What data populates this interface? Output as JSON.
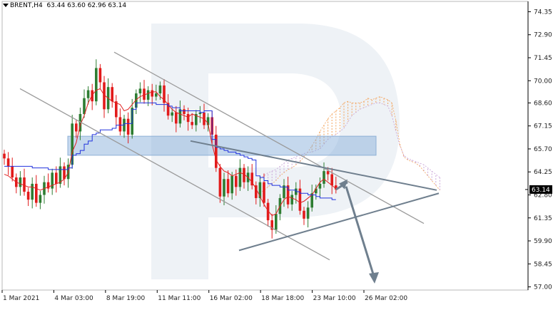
{
  "header": {
    "symbol": "BRENT,H4",
    "ohlc": "63.44 63.60 62.96 63.14"
  },
  "colors": {
    "bull": "#2e7d32",
    "bear": "#e21b1b",
    "tenkan": "#e02020",
    "kijun": "#2233dd",
    "cloud_bull": "#f3a35a",
    "cloud_bear": "#c9a4d8",
    "resistance_zone": "#7fa9d8",
    "trend_line": "#9a9a9a",
    "forecast_arrow": "#6f7f8e",
    "price_tag_bg": "#000000"
  },
  "chart_data": {
    "type": "candlestick",
    "title": "BRENT,H4",
    "ohlc_readout": "63.44 63.60 62.96 63.14",
    "y_axis": {
      "ylim": [
        56.8,
        75.0
      ],
      "ticks": [
        "74.35",
        "72.90",
        "71.45",
        "70.00",
        "68.60",
        "67.15",
        "65.70",
        "64.25",
        "62.80",
        "61.35",
        "59.90",
        "58.45",
        "57.00"
      ]
    },
    "x_axis": {
      "ticks": [
        "1 Mar 2021",
        "4 Mar 03:00",
        "8 Mar 19:00",
        "11 Mar 11:00",
        "16 Mar 02:00",
        "18 Mar 18:00",
        "23 Mar 10:00",
        "26 Mar 02:00"
      ]
    },
    "last_price": "63.14",
    "closes": [
      65.1,
      64.6,
      63.9,
      63.3,
      63.9,
      63.0,
      62.5,
      63.5,
      62.3,
      62.8,
      63.6,
      63.2,
      64.2,
      63.5,
      64.6,
      63.8,
      64.7,
      67.3,
      66.8,
      67.9,
      68.9,
      69.4,
      68.7,
      70.8,
      69.9,
      68.2,
      69.6,
      68.7,
      67.7,
      66.8,
      67.6,
      66.6,
      68.3,
      69.2,
      69.5,
      68.8,
      69.4,
      69.0,
      69.2,
      69.7,
      68.6,
      67.8,
      68.0,
      67.3,
      68.2,
      67.9,
      67.4,
      67.2,
      67.9,
      68.0,
      67.2,
      67.7,
      66.6,
      64.5,
      62.7,
      63.8,
      62.9,
      64.0,
      63.3,
      64.5,
      63.6,
      64.2,
      63.4,
      62.6,
      63.6,
      62.3,
      61.2,
      60.6,
      61.6,
      62.6,
      63.4,
      62.2,
      62.8,
      63.2,
      61.8,
      61.3,
      62.0,
      62.9,
      63.2,
      63.5,
      64.3,
      64.1,
      63.4,
      63.14
    ],
    "tenkan_sen": [
      64.1,
      64.0,
      63.8,
      63.6,
      63.5,
      63.4,
      63.3,
      63.3,
      63.2,
      63.1,
      63.2,
      63.3,
      63.4,
      63.5,
      63.6,
      63.8,
      64.2,
      65.5,
      66.1,
      67.2,
      67.8,
      68.6,
      69.1,
      69.4,
      69.5,
      69.1,
      68.9,
      68.7,
      68.6,
      68.5,
      68.1,
      68.2,
      68.5,
      68.8,
      69.0,
      69.1,
      69.2,
      69.3,
      69.3,
      69.0,
      68.8,
      68.5,
      68.2,
      68.0,
      67.9,
      67.8,
      67.7,
      67.9,
      67.8,
      67.7,
      67.6,
      67.3,
      66.0,
      65.0,
      64.6,
      64.3,
      64.2,
      64.0,
      64.1,
      64.2,
      64.1,
      63.9,
      63.6,
      63.2,
      62.7,
      62.2,
      61.8,
      61.5,
      61.6,
      62.1,
      62.5,
      62.7,
      62.6,
      62.5,
      62.3,
      62.4,
      62.6,
      62.8,
      63.2,
      63.6,
      63.8,
      63.6,
      63.4,
      63.2
    ],
    "kijun_sen": [
      64.6,
      64.6,
      64.6,
      64.6,
      64.6,
      64.6,
      64.6,
      64.5,
      64.5,
      64.5,
      64.5,
      64.4,
      64.4,
      64.4,
      64.4,
      64.4,
      64.5,
      65.3,
      65.4,
      65.6,
      66.0,
      66.2,
      66.6,
      66.7,
      66.9,
      66.9,
      66.9,
      67.0,
      67.2,
      67.2,
      67.3,
      67.3,
      68.2,
      68.6,
      68.6,
      68.6,
      68.6,
      68.6,
      68.5,
      68.5,
      68.5,
      68.4,
      68.3,
      68.3,
      68.1,
      68.1,
      68.1,
      68.1,
      68.1,
      68.0,
      68.1,
      68.1,
      66.3,
      65.8,
      65.7,
      65.6,
      65.5,
      65.5,
      65.4,
      65.3,
      65.2,
      65.1,
      65.0,
      64.0,
      63.9,
      63.7,
      63.5,
      63.4,
      63.4,
      63.3,
      63.3,
      63.1,
      63.1,
      63.0,
      62.9,
      62.9,
      62.8,
      62.8,
      62.7,
      62.6,
      62.6,
      62.6,
      62.5,
      62.5
    ],
    "cloud": {
      "span_a": [
        62.9,
        63.1,
        63.3,
        63.5,
        63.7,
        64.0,
        64.2,
        64.4,
        64.5,
        64.7,
        64.9,
        65.2,
        65.5,
        65.9,
        66.3,
        66.8,
        67.2,
        67.6,
        67.9,
        68.1,
        68.3,
        68.6,
        68.7,
        68.6,
        68.6,
        68.6,
        68.7,
        68.9,
        68.8,
        68.9,
        69.0,
        68.9,
        68.8,
        68.6,
        67.5,
        66.0,
        65.2,
        65.0,
        64.9,
        64.8,
        64.6,
        64.3,
        64.0,
        63.7,
        63.4,
        63.1
      ],
      "span_b": [
        63.8,
        64.0,
        64.2,
        64.3,
        64.4,
        64.6,
        64.8,
        65.0,
        65.1,
        65.2,
        65.3,
        65.4,
        65.5,
        65.5,
        65.6,
        65.7,
        66.0,
        66.3,
        66.5,
        66.6,
        66.8,
        67.0,
        67.4,
        67.8,
        68.0,
        68.2,
        68.3,
        68.4,
        68.5,
        68.6,
        68.6,
        68.5,
        68.4,
        67.8,
        66.8,
        65.9,
        65.3,
        65.1,
        65.0,
        64.9,
        64.8,
        64.7,
        64.5,
        64.3,
        64.1,
        63.9
      ]
    },
    "annotations": {
      "resistance_zone": [
        65.3,
        66.5
      ],
      "down_channel_upper": [
        [
          0.0,
          71.8
        ],
        [
          1.0,
          61.0
        ]
      ],
      "down_channel_lower": [
        [
          0.0,
          69.5
        ],
        [
          1.0,
          58.7
        ]
      ],
      "triangle_upper": [
        [
          0.0,
          66.2
        ],
        [
          1.0,
          63.1
        ]
      ],
      "triangle_lower": [
        [
          0.0,
          59.3
        ],
        [
          1.0,
          62.9
        ]
      ],
      "forecast_path": [
        63.14,
        63.6,
        57.3
      ]
    }
  }
}
